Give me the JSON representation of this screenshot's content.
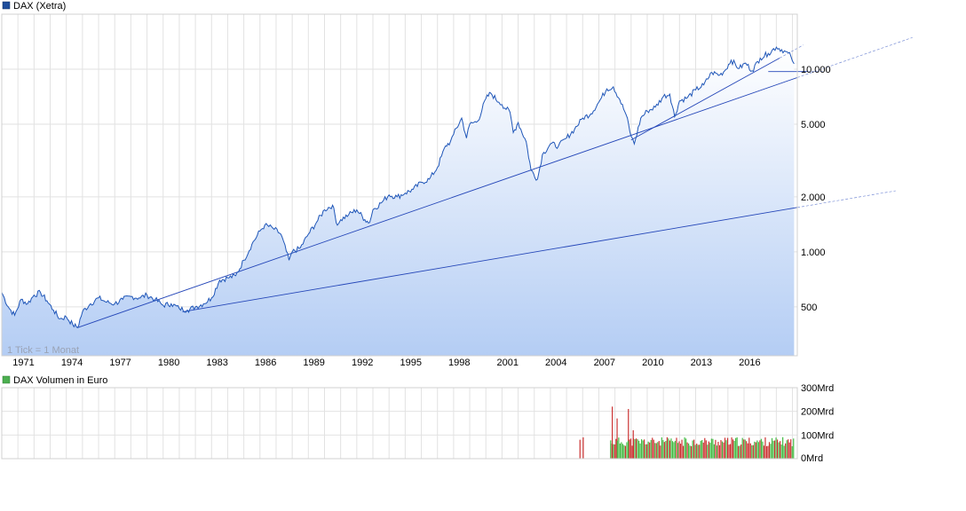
{
  "chart_data": [
    {
      "type": "area",
      "title": "DAX (Xetra)",
      "legend_color": "#1f4e9c",
      "scale": "log",
      "x_ticks": [
        "1971",
        "1974",
        "1977",
        "1980",
        "1983",
        "1986",
        "1989",
        "1992",
        "1995",
        "1998",
        "2001",
        "2004",
        "2007",
        "2010",
        "2013",
        "2016"
      ],
      "y_ticks": [
        {
          "value": 500,
          "label": "500"
        },
        {
          "value": 1000,
          "label": "1.000"
        },
        {
          "value": 2000,
          "label": "2.000"
        },
        {
          "value": 5000,
          "label": "5.000"
        },
        {
          "value": 10000,
          "label": "10.000"
        }
      ],
      "ylim": [
        270,
        20000
      ],
      "xlim": [
        1970.0,
        2019.3
      ],
      "note": "1 Tick = 1 Monat",
      "series": [
        {
          "x": [
            1970.0,
            1970.4,
            1970.8,
            1971.2,
            1971.6,
            1972.0,
            1972.4,
            1972.8,
            1973.2,
            1973.6,
            1974.0,
            1974.4,
            1974.7,
            1975.0,
            1975.5,
            1976.0,
            1976.5,
            1977.0,
            1977.5,
            1978.0,
            1978.5,
            1979.0,
            1979.5,
            1980.0,
            1980.5,
            1981.0,
            1981.5,
            1982.0,
            1982.5,
            1983.0,
            1983.5,
            1984.0,
            1984.5,
            1985.0,
            1985.5,
            1986.0,
            1986.3,
            1986.8,
            1987.3,
            1987.8,
            1988.0,
            1988.5,
            1989.0,
            1989.5,
            1990.0,
            1990.5,
            1990.8,
            1991.0,
            1991.5,
            1992.0,
            1992.5,
            1992.8,
            1993.0,
            1993.5,
            1994.0,
            1994.5,
            1995.0,
            1995.5,
            1996.0,
            1996.5,
            1997.0,
            1997.5,
            1997.8,
            1998.0,
            1998.5,
            1998.8,
            1999.0,
            1999.5,
            2000.0,
            2000.3,
            2000.8,
            2001.0,
            2001.5,
            2001.7,
            2002.0,
            2002.5,
            2002.8,
            2003.2,
            2003.5,
            2004.0,
            2004.5,
            2005.0,
            2005.5,
            2006.0,
            2006.5,
            2007.0,
            2007.5,
            2007.9,
            2008.3,
            2008.7,
            2009.0,
            2009.2,
            2009.6,
            2010.0,
            2010.5,
            2011.0,
            2011.4,
            2011.7,
            2012.0,
            2012.5,
            2013.0,
            2013.5,
            2014.0,
            2014.5,
            2014.8,
            2015.2,
            2015.7,
            2016.1,
            2016.5,
            2017.0,
            2017.5,
            2018.0,
            2018.5,
            2018.9,
            2019.1
          ],
          "y": [
            600,
            500,
            450,
            550,
            520,
            580,
            600,
            540,
            480,
            430,
            440,
            400,
            385,
            470,
            520,
            560,
            530,
            520,
            550,
            570,
            560,
            580,
            550,
            510,
            520,
            490,
            480,
            500,
            520,
            560,
            700,
            720,
            740,
            900,
            1100,
            1300,
            1400,
            1350,
            1250,
            900,
            1000,
            1050,
            1250,
            1450,
            1700,
            1800,
            1400,
            1500,
            1600,
            1700,
            1500,
            1450,
            1700,
            1850,
            2050,
            2000,
            2100,
            2200,
            2400,
            2500,
            2900,
            3800,
            4000,
            4400,
            5400,
            4200,
            5000,
            5200,
            6900,
            7400,
            6600,
            6400,
            5800,
            4500,
            5100,
            4000,
            2800,
            2500,
            3400,
            3900,
            3800,
            4200,
            4700,
            5400,
            5700,
            6600,
            7800,
            8000,
            6800,
            5600,
            4300,
            3900,
            5400,
            5900,
            6200,
            7100,
            7300,
            5500,
            6700,
            7000,
            7700,
            8200,
            9600,
            9300,
            9800,
            11200,
            10100,
            10800,
            9800,
            11500,
            12200,
            13200,
            12600,
            11800,
            10700
          ]
        }
      ],
      "trendlines": [
        {
          "from": {
            "x": 1974.7,
            "y": 385
          },
          "to": {
            "x": 2019.3,
            "y": 9000
          }
        },
        {
          "from": {
            "x": 1981.2,
            "y": 470
          },
          "to": {
            "x": 2019.3,
            "y": 1750
          }
        },
        {
          "from": {
            "x": 2009.0,
            "y": 4100
          },
          "to": {
            "x": 2018.2,
            "y": 11500
          }
        },
        {
          "from": {
            "x": 2017.5,
            "y": 9700
          },
          "to": {
            "x": 2019.9,
            "y": 9700
          }
        }
      ]
    },
    {
      "type": "bar",
      "title": "DAX Volumen in Euro",
      "legend_color": "#4caf50",
      "unit": "Mrd",
      "y_ticks": [
        {
          "value": 0,
          "label": "0Mrd"
        },
        {
          "value": 100,
          "label": "100Mrd"
        },
        {
          "value": 200,
          "label": "200Mrd"
        },
        {
          "value": 300,
          "label": "300Mrd"
        }
      ],
      "ylim": [
        0,
        300
      ],
      "up_color": "#44bb44",
      "down_color": "#cc3333",
      "volume_spikes": [
        {
          "x": 2005.8,
          "value": 80
        },
        {
          "x": 2006.0,
          "value": 90
        },
        {
          "x": 2007.8,
          "value": 220
        },
        {
          "x": 2008.1,
          "value": 170
        },
        {
          "x": 2008.8,
          "value": 210
        },
        {
          "x": 2009.1,
          "value": 120
        }
      ],
      "volume_start": 2007.7,
      "volume_end": 2019.1,
      "volume_base": 70
    }
  ]
}
